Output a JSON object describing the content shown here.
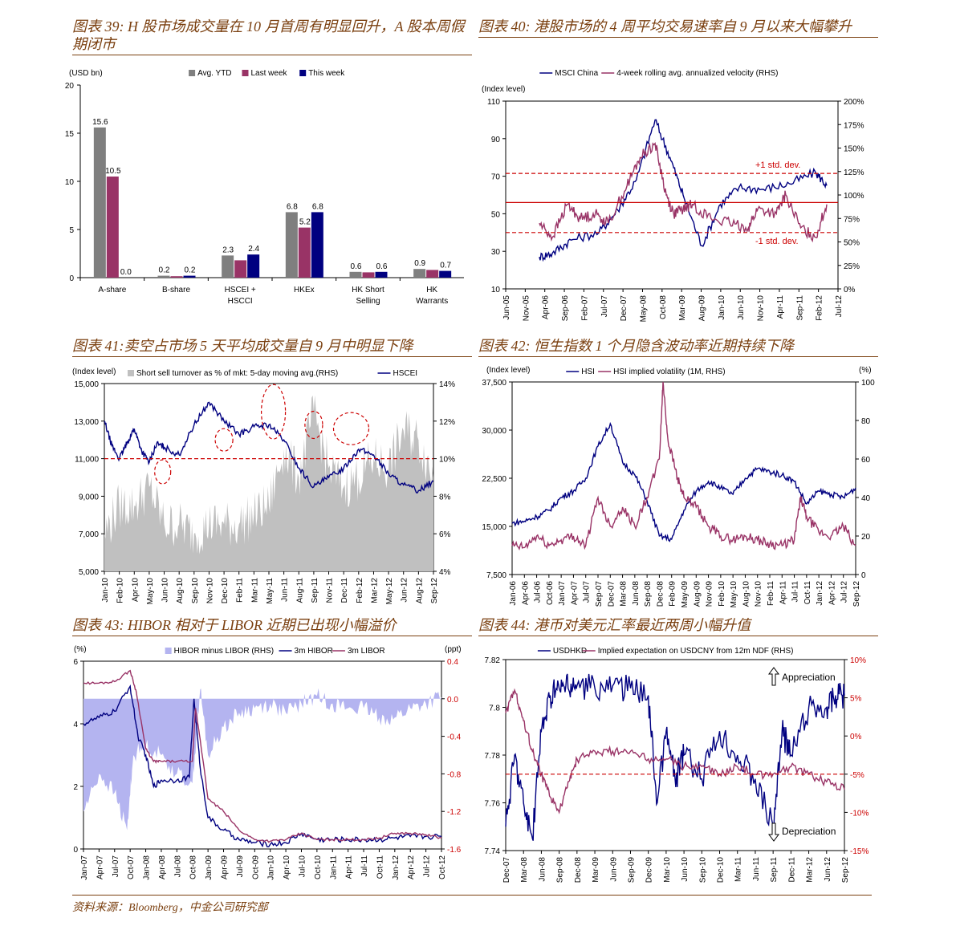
{
  "footer": {
    "source": "资料来源：Bloomberg，中金公司研究部"
  },
  "chart_data": [
    {
      "id": "fig39",
      "type": "bar",
      "title": "图表 39: H 股市场成交量在 10 月首周有明显回升，A 股本周假期闭市",
      "ylabel": "(USD bn)",
      "ylim": [
        0,
        20
      ],
      "yticks": [
        "0",
        "5",
        "10",
        "15",
        "20"
      ],
      "grid": false,
      "legend": "top",
      "categories": [
        "A-share",
        "B-share",
        "HSCEI + HSCCI",
        "HKEx",
        "HK Short Selling",
        "HK Warrants"
      ],
      "series": [
        {
          "name": "Avg. YTD",
          "color": "#7f7f7f",
          "values": [
            15.6,
            0.2,
            2.3,
            6.8,
            0.6,
            0.9
          ],
          "labels": [
            "15.6",
            "0.2",
            "2.3",
            "6.8",
            "0.6",
            "0.9"
          ]
        },
        {
          "name": "Last week",
          "color": "#993366",
          "values": [
            10.5,
            0.15,
            1.8,
            5.2,
            0.55,
            0.8
          ],
          "labels": [
            "10.5",
            "",
            "",
            "5.2",
            "",
            ""
          ]
        },
        {
          "name": "This week",
          "color": "#000080",
          "values": [
            0.0,
            0.2,
            2.4,
            6.8,
            0.6,
            0.7
          ],
          "labels": [
            "0.0",
            "0.2",
            "2.4",
            "6.8",
            "0.6",
            "0.7"
          ]
        }
      ]
    },
    {
      "id": "fig40",
      "type": "line",
      "title": "图表 40: 港股市场的 4 周平均交易速率自 9 月以来大幅攀升",
      "ylabel": "(Index level)",
      "ylim": [
        10,
        110
      ],
      "yticks": [
        "10",
        "30",
        "50",
        "70",
        "90",
        "110"
      ],
      "y2lim": [
        0,
        200
      ],
      "y2ticks": [
        "0%",
        "25%",
        "50%",
        "75%",
        "100%",
        "125%",
        "150%",
        "175%",
        "200%"
      ],
      "xticks": [
        "Jun-05",
        "Nov-05",
        "Apr-06",
        "Sep-06",
        "Feb-07",
        "Jul-07",
        "Dec-07",
        "May-08",
        "Oct-08",
        "Mar-09",
        "Aug-09",
        "Jan-10",
        "Jun-10",
        "Nov-10",
        "Apr-11",
        "Sep-11",
        "Feb-12",
        "Jul-12"
      ],
      "legend": "top",
      "reference_lines": [
        {
          "axis": "y2",
          "value": 123,
          "style": "dashed",
          "color": "#cc0000",
          "label": "+1 std. dev."
        },
        {
          "axis": "y2",
          "value": 92,
          "style": "solid",
          "color": "#cc0000",
          "label": ""
        },
        {
          "axis": "y2",
          "value": 60,
          "style": "dashed",
          "color": "#cc0000",
          "label": "-1 std. dev."
        }
      ],
      "series": [
        {
          "name": "MSCI China",
          "axis": "y",
          "color": "#000080",
          "x": [
            1.8,
            2.5,
            3.5,
            5,
            6,
            7,
            8,
            8.8,
            9.5,
            10.5,
            11.5,
            12.5,
            13.8,
            15.2,
            16.6,
            17.2
          ],
          "y": [
            27,
            29,
            36,
            40,
            52,
            68,
            100,
            80,
            60,
            33,
            55,
            64,
            63,
            66,
            72,
            65
          ]
        },
        {
          "name": "4-week rolling avg. annualized velocity (RHS)",
          "axis": "y2",
          "color": "#993366",
          "x": [
            1.8,
            2.5,
            3.3,
            4,
            4.8,
            5.5,
            6.5,
            7.2,
            8,
            8.6,
            9,
            9.5,
            10,
            11,
            12,
            13,
            13.5,
            14.5,
            15,
            15.8,
            16.6,
            17.2
          ],
          "y": [
            70,
            55,
            90,
            75,
            80,
            70,
            110,
            140,
            155,
            100,
            80,
            85,
            90,
            75,
            70,
            65,
            85,
            80,
            100,
            65,
            55,
            90
          ]
        }
      ]
    },
    {
      "id": "fig41",
      "type": "area",
      "title": "图表 41:卖空占市场 5 天平均成交量自 9 月中明显下降",
      "ylabel": "(Index level)",
      "ylim": [
        5000,
        15000
      ],
      "yticks": [
        "5,000",
        "7,000",
        "9,000",
        "11,000",
        "13,000",
        "15,000"
      ],
      "y2lim": [
        4,
        14
      ],
      "y2ticks": [
        "4%",
        "6%",
        "8%",
        "10%",
        "12%",
        "14%"
      ],
      "xticks": [
        "Jan-10",
        "Feb-10",
        "Apr-10",
        "May-10",
        "Jun-10",
        "Aug-10",
        "Sep-10",
        "Nov-10",
        "Dec-10",
        "Feb-11",
        "Mar-11",
        "May-11",
        "Jun-11",
        "Aug-11",
        "Sep-11",
        "Nov-11",
        "Dec-11",
        "Feb-12",
        "Mar-12",
        "May-12",
        "Jun-12",
        "Aug-12",
        "Sep-12"
      ],
      "legend": "top",
      "reference_lines": [
        {
          "axis": "y",
          "value": 11000,
          "style": "dashed",
          "color": "#cc0000",
          "label": ""
        }
      ],
      "series": [
        {
          "name": "Short sell turnover as % of mkt: 5-day moving avg.(RHS)",
          "axis": "y2",
          "type": "area",
          "color": "#c0c0c0",
          "x": [
            0,
            1,
            2,
            3,
            4,
            5,
            6,
            7,
            8,
            9,
            10,
            11,
            12,
            13,
            14,
            15,
            16,
            17,
            18,
            19,
            20,
            21,
            22
          ],
          "y": [
            6,
            7.5,
            7.5,
            8.5,
            6.5,
            6.5,
            6,
            6.5,
            6.5,
            6.5,
            7,
            7.5,
            10.5,
            9,
            12.5,
            9.5,
            8.5,
            9,
            10,
            9.5,
            11.5,
            11,
            9
          ]
        },
        {
          "name": "HSCEI",
          "axis": "y",
          "type": "line",
          "color": "#000080",
          "x": [
            0,
            0.5,
            1,
            1.5,
            2,
            2.5,
            3,
            3.5,
            4,
            5,
            6,
            7,
            8,
            9,
            10,
            11,
            12,
            13,
            14,
            15,
            16,
            17,
            18,
            19,
            20,
            21,
            22
          ],
          "y": [
            13000,
            11700,
            11000,
            11800,
            12600,
            11400,
            10800,
            11800,
            11600,
            11200,
            12800,
            14000,
            13000,
            12300,
            12700,
            12800,
            12000,
            10500,
            9500,
            10000,
            10500,
            11500,
            11200,
            10200,
            9600,
            9300,
            9800
          ]
        }
      ]
    },
    {
      "id": "fig42",
      "type": "line",
      "title": "图表 42: 恒生指数 1 个月隐含波动率近期持续下降",
      "ylabel": "(Index level)",
      "y2label": "(%)",
      "ylim": [
        7500,
        37500
      ],
      "yticks": [
        "7,500",
        "15,000",
        "22,500",
        "30,000",
        "37,500"
      ],
      "y2lim": [
        0,
        100
      ],
      "y2ticks": [
        "0",
        "20",
        "40",
        "60",
        "80",
        "100"
      ],
      "xticks": [
        "Jan-06",
        "Apr-06",
        "Jul-06",
        "Oct-06",
        "Jan-07",
        "Apr-07",
        "Jul-07",
        "Sep-07",
        "Dec-07",
        "Mar-08",
        "Jun-08",
        "Sep-08",
        "Dec-08",
        "Feb-09",
        "May-09",
        "Aug-09",
        "Nov-09",
        "Feb-10",
        "May-10",
        "Aug-10",
        "Nov-10",
        "Feb-11",
        "Apr-11",
        "Jul-11",
        "Oct-11",
        "Jan-12",
        "Apr-12",
        "Jul-12",
        "Sep-12"
      ],
      "legend": "top",
      "series": [
        {
          "name": "HSI",
          "axis": "y",
          "color": "#000080",
          "x": [
            0,
            1,
            2,
            3,
            4,
            5,
            6,
            7,
            8,
            9,
            10,
            11,
            12,
            13,
            14,
            15,
            16,
            17,
            18,
            19,
            20,
            21,
            22,
            23,
            24,
            25,
            26,
            27,
            28
          ],
          "y": [
            15500,
            15800,
            16500,
            17500,
            19500,
            20500,
            22500,
            27500,
            31000,
            25000,
            23000,
            19000,
            13500,
            13000,
            17500,
            20500,
            22000,
            21000,
            20000,
            22500,
            24000,
            23500,
            23000,
            22000,
            18500,
            20500,
            20000,
            19500,
            21000
          ]
        },
        {
          "name": "HSI implied volatility (1M, RHS)",
          "axis": "y2",
          "color": "#993366",
          "x": [
            0,
            1,
            2,
            3,
            4,
            5,
            6,
            7,
            8,
            9,
            10,
            11,
            12,
            12.3,
            12.7,
            13.5,
            14,
            15,
            16,
            17,
            18,
            19,
            20,
            21,
            22,
            23,
            23.5,
            24,
            25,
            26,
            27,
            28
          ],
          "y": [
            15,
            14,
            20,
            15,
            18,
            20,
            15,
            40,
            25,
            35,
            25,
            40,
            60,
            100,
            70,
            50,
            40,
            35,
            25,
            20,
            18,
            20,
            18,
            16,
            15,
            18,
            40,
            30,
            22,
            20,
            25,
            15
          ]
        }
      ]
    },
    {
      "id": "fig43",
      "type": "line",
      "title": "图表 43: HIBOR 相对于 LIBOR 近期已出现小幅溢价",
      "ylabel": "(%)",
      "y2label": "(ppt)",
      "ylim": [
        0,
        6
      ],
      "yticks": [
        "0",
        "2",
        "4",
        "6"
      ],
      "y2lim": [
        -1.6,
        0.4
      ],
      "y2ticks": [
        "-1.6",
        "-1.2",
        "-0.8",
        "-0.4",
        "0.0",
        "0.4"
      ],
      "xticks": [
        "Jan-07",
        "Apr-07",
        "Jul-07",
        "Oct-07",
        "Jan-08",
        "Apr-08",
        "Jul-08",
        "Oct-08",
        "Jan-09",
        "Apr-09",
        "Jul-09",
        "Oct-09",
        "Jan-10",
        "Apr-10",
        "Jul-10",
        "Oct-10",
        "Jan-11",
        "Apr-11",
        "Jul-11",
        "Oct-11",
        "Jan-12",
        "Apr-12",
        "Jul-12",
        "Oct-12"
      ],
      "legend": "top",
      "series": [
        {
          "name": "HIBOR minus LIBOR (RHS)",
          "axis": "y2",
          "type": "area",
          "color": "#b4b4f0",
          "x": [
            0,
            1,
            2,
            2.8,
            3.2,
            4,
            5,
            6,
            7,
            7.5,
            8,
            9,
            10,
            11,
            12,
            13,
            14,
            15,
            16,
            17,
            18,
            19,
            20,
            21,
            22,
            23
          ],
          "y": [
            -1.2,
            -0.8,
            -1.0,
            -1.4,
            -0.6,
            -0.5,
            -0.6,
            -0.8,
            -0.9,
            0.1,
            -0.6,
            -0.3,
            -0.15,
            -0.1,
            -0.05,
            -0.15,
            -0.05,
            0.03,
            -0.05,
            -0.1,
            -0.1,
            -0.2,
            -0.2,
            -0.1,
            -0.05,
            0.02
          ]
        },
        {
          "name": "3m HIBOR",
          "axis": "y",
          "color": "#000080",
          "x": [
            0,
            1,
            2,
            3,
            3.5,
            4,
            4.5,
            5,
            6,
            6.8,
            7.1,
            7.5,
            8,
            9,
            10,
            11,
            12,
            13,
            14,
            15,
            16,
            17,
            18,
            19,
            20,
            21,
            22,
            23
          ],
          "y": [
            4.0,
            4.2,
            4.4,
            5.2,
            3.6,
            3.0,
            2.0,
            2.2,
            2.2,
            2.3,
            4.8,
            2.6,
            1.0,
            0.6,
            0.3,
            0.2,
            0.15,
            0.2,
            0.5,
            0.3,
            0.3,
            0.3,
            0.3,
            0.3,
            0.35,
            0.4,
            0.4,
            0.4
          ]
        },
        {
          "name": "3m LIBOR",
          "axis": "y",
          "color": "#993366",
          "x": [
            0,
            1,
            2,
            3,
            3.4,
            4,
            4.5,
            5,
            6,
            7,
            7.2,
            7.5,
            8,
            9,
            10,
            11,
            12,
            13,
            14,
            15,
            16,
            17,
            18,
            19,
            20,
            21,
            22,
            23
          ],
          "y": [
            5.3,
            5.3,
            5.35,
            5.7,
            5.0,
            3.2,
            2.8,
            2.8,
            2.8,
            2.8,
            4.5,
            3.5,
            1.6,
            1.2,
            0.6,
            0.3,
            0.25,
            0.3,
            0.5,
            0.3,
            0.3,
            0.3,
            0.3,
            0.35,
            0.5,
            0.5,
            0.45,
            0.35
          ]
        }
      ]
    },
    {
      "id": "fig44",
      "type": "line",
      "title": "图表 44: 港币对美元汇率最近两周小幅升值",
      "ylim": [
        7.82,
        7.74
      ],
      "yticks": [
        "7.74",
        "7.76",
        "7.78",
        "7.8",
        "7.82"
      ],
      "y2lim": [
        10,
        -15
      ],
      "y2ticks": [
        "-15%",
        "-10%",
        "-5%",
        "0%",
        "5%",
        "10%"
      ],
      "xticks": [
        "Dec-07",
        "Mar-08",
        "Jun-08",
        "Sep-08",
        "Dec-08",
        "Mar-09",
        "Jun-09",
        "Sep-09",
        "Dec-09",
        "Mar-10",
        "Jun-10",
        "Sep-10",
        "Dec-10",
        "Mar-11",
        "Jun-11",
        "Sep-11",
        "Dec-11",
        "Mar-12",
        "Jun-12",
        "Sep-12"
      ],
      "legend": "top",
      "annotations": [
        {
          "text": "Appreciation",
          "at": "top-right"
        },
        {
          "text": "Depreciation",
          "at": "bottom-right"
        }
      ],
      "reference_lines": [
        {
          "axis": "y2",
          "value": 0,
          "style": "dashed",
          "color": "#cc0000",
          "label": ""
        }
      ],
      "series": [
        {
          "name": "USDHKD",
          "axis": "y",
          "color": "#000080",
          "x": [
            0,
            0.5,
            1,
            1.5,
            2,
            2.5,
            3,
            3.5,
            4,
            5,
            6,
            7,
            8,
            8.5,
            9,
            9.5,
            10,
            11,
            12,
            13,
            14,
            15,
            15.5,
            16,
            17,
            18,
            18.5,
            19
          ],
          "y": [
            7.81,
            7.78,
            7.8,
            7.815,
            7.77,
            7.755,
            7.752,
            7.752,
            7.751,
            7.752,
            7.751,
            7.752,
            7.755,
            7.8,
            7.77,
            7.79,
            7.78,
            7.79,
            7.77,
            7.78,
            7.79,
            7.81,
            7.77,
            7.78,
            7.76,
            7.76,
            7.755,
            7.755
          ]
        },
        {
          "name": "Implied expectation on USDCNY from 12m NDF (RHS)",
          "axis": "y2",
          "color": "#993366",
          "x": [
            0,
            0.5,
            1,
            1.5,
            2,
            2.5,
            3,
            3.5,
            4,
            5,
            6,
            7,
            8,
            9,
            10,
            11,
            12,
            13,
            14,
            15,
            16,
            17,
            18,
            19
          ],
          "y": [
            -8,
            -11,
            -7,
            -3,
            0,
            3,
            5,
            1,
            -2,
            -3,
            -3,
            -3,
            -2,
            -2,
            -1,
            -1,
            0,
            -1,
            0,
            0,
            -1,
            0,
            1,
            2
          ]
        }
      ]
    }
  ]
}
